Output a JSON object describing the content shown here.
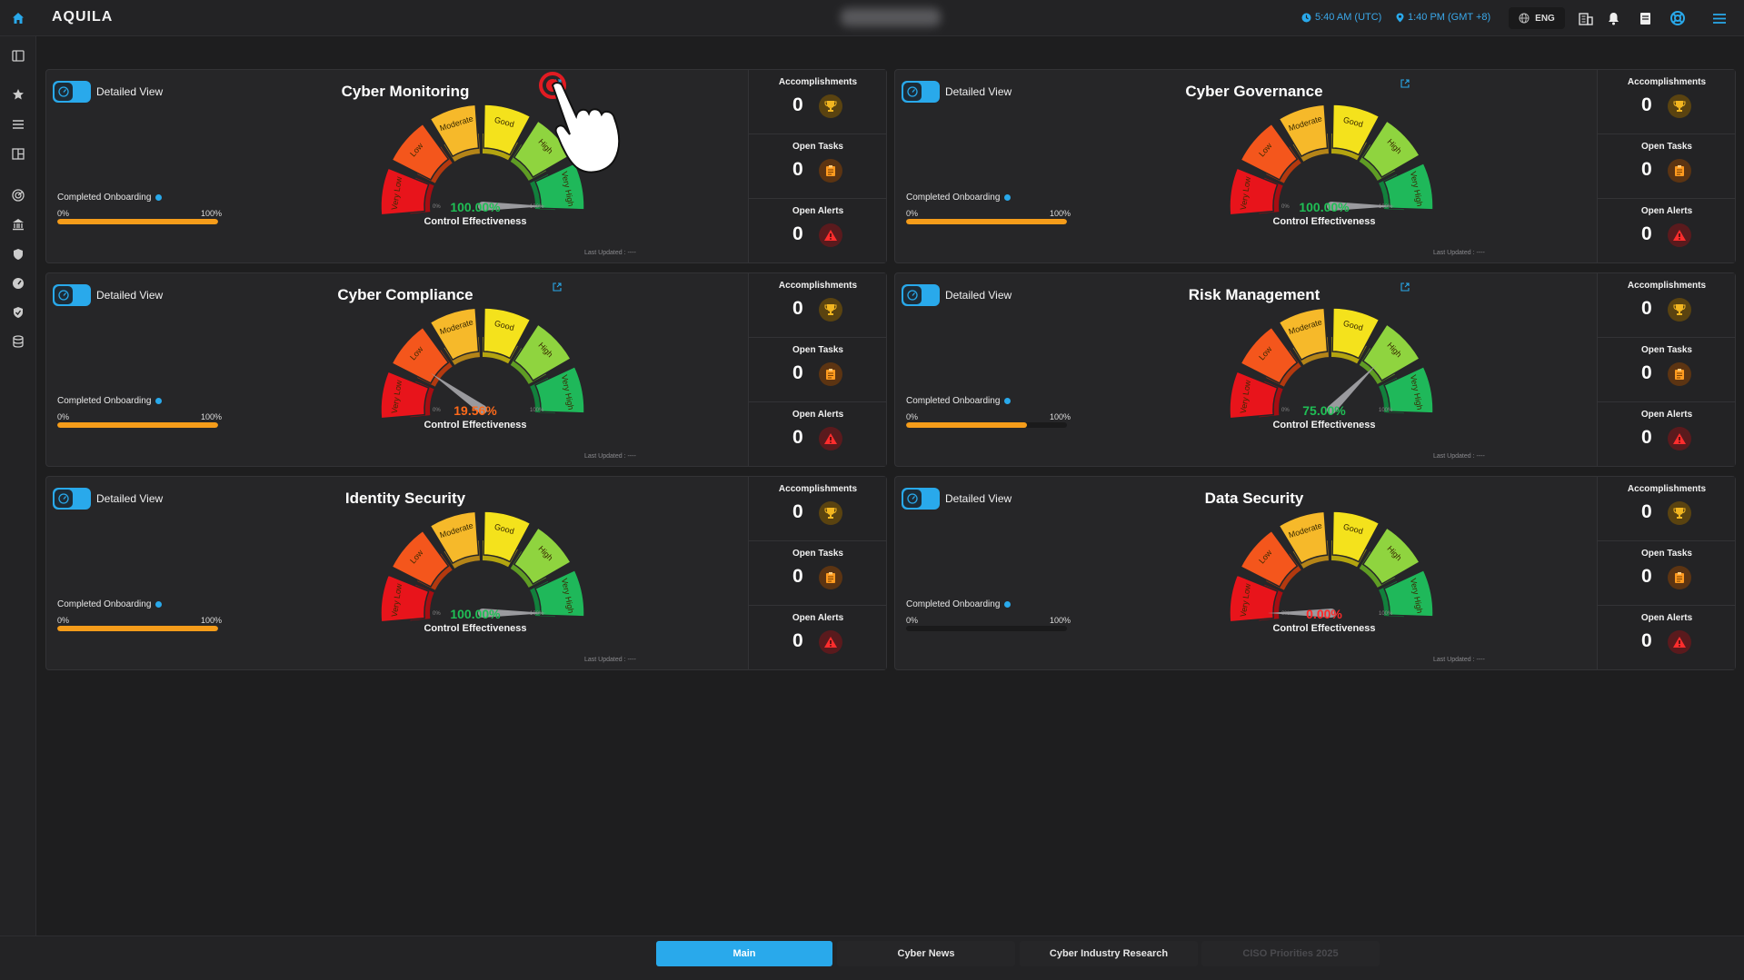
{
  "app": {
    "brand": "AQUILA",
    "utc_time": "5:40 AM (UTC)",
    "local_time": "1:40 PM (GMT +8)",
    "language": "ENG"
  },
  "colors": {
    "accent": "#29a9eb",
    "good": "#1fbf55",
    "bad": "#ff2a2a",
    "warn": "#ff6a1a",
    "progress": "#f59c1a"
  },
  "sidebar_icons": [
    "panel-icon",
    "star-icon",
    "list-icon",
    "layout-icon",
    "radar-icon",
    "bank-icon",
    "shield-icon",
    "gauge-icon",
    "shield-check-icon",
    "database-icon"
  ],
  "gauge_labels": [
    "Very Low",
    "Low",
    "Moderate",
    "Good",
    "High",
    "Very High"
  ],
  "gauge_min": "0%",
  "gauge_max": "100%",
  "common": {
    "detailed_view": "Detailed View",
    "completed_onboarding": "Completed Onboarding",
    "pct_min": "0%",
    "pct_max": "100%",
    "control_effectiveness": "Control Effectiveness",
    "last_updated": "Last Updated : ----",
    "accomplishments": "Accomplishments",
    "open_tasks": "Open Tasks",
    "open_alerts": "Open Alerts"
  },
  "cards": [
    {
      "title": "Cyber Monitoring",
      "effectiveness": "100.00%",
      "effectiveness_value": 100,
      "onboarding": 100,
      "accomplishments": "0",
      "open_tasks": "0",
      "open_alerts": "0",
      "has_link": true
    },
    {
      "title": "Cyber Governance",
      "effectiveness": "100.00%",
      "effectiveness_value": 100,
      "onboarding": 100,
      "accomplishments": "0",
      "open_tasks": "0",
      "open_alerts": "0",
      "has_link": true
    },
    {
      "title": "Cyber Compliance",
      "effectiveness": "19.56%",
      "effectiveness_value": 19.56,
      "onboarding": 100,
      "accomplishments": "0",
      "open_tasks": "0",
      "open_alerts": "0",
      "has_link": true
    },
    {
      "title": "Risk Management",
      "effectiveness": "75.00%",
      "effectiveness_value": 75,
      "onboarding": 75,
      "accomplishments": "0",
      "open_tasks": "0",
      "open_alerts": "0",
      "has_link": true
    },
    {
      "title": "Identity Security",
      "effectiveness": "100.00%",
      "effectiveness_value": 100,
      "onboarding": 100,
      "accomplishments": "0",
      "open_tasks": "0",
      "open_alerts": "0",
      "has_link": false
    },
    {
      "title": "Data Security",
      "effectiveness": "0.00%",
      "effectiveness_value": 0,
      "onboarding": 0,
      "accomplishments": "0",
      "open_tasks": "0",
      "open_alerts": "0",
      "has_link": false
    }
  ],
  "tabs": [
    {
      "label": "Main",
      "active": true
    },
    {
      "label": "Cyber News",
      "active": false
    },
    {
      "label": "Cyber Industry Research",
      "active": false
    },
    {
      "label": "CISO Priorities 2025",
      "active": false
    }
  ]
}
